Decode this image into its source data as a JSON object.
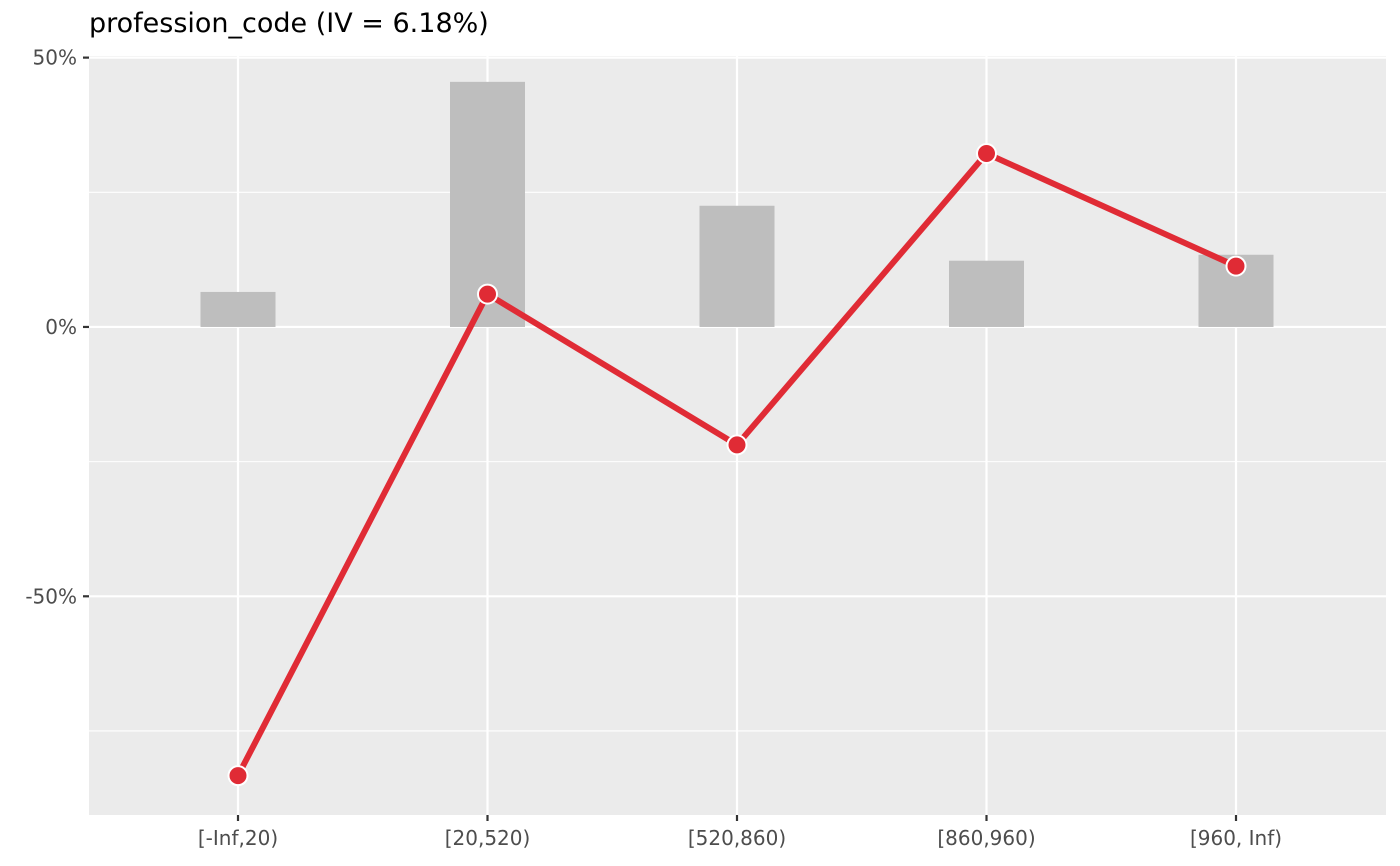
{
  "chart_data": {
    "type": "bar+line",
    "title": "profession_code (IV = 6.18%)",
    "xlabel": "",
    "ylabel": "",
    "categories": [
      "[-Inf,20)",
      "[20,520)",
      "[520,860)",
      "[860,960)",
      "[960, Inf)"
    ],
    "bar_values": [
      6.5,
      45.5,
      22.5,
      12.3,
      13.4
    ],
    "line_values": [
      -83.3,
      6.1,
      -21.9,
      32.2,
      11.3
    ],
    "ylim": [
      -90.6,
      50.3
    ],
    "yticks": [
      50,
      0,
      -50
    ],
    "ytick_labels": [
      "50%",
      "0%",
      "-50%"
    ],
    "grid": true,
    "colors": {
      "panel": "#ebebeb",
      "grid": "#ffffff",
      "bar": "#bebebe",
      "line": "#e02b35",
      "point_stroke": "#ffffff"
    }
  }
}
